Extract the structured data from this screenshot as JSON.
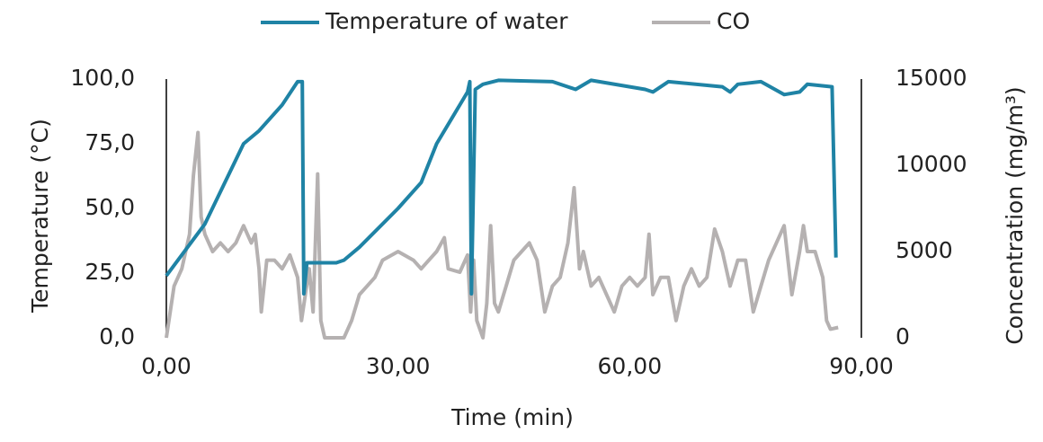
{
  "chart_data": {
    "type": "line",
    "xlabel": "Time (min)",
    "ylabel": "Temperature (°C)",
    "y2label": "Concentration (mg/m³)",
    "xlim": [
      0,
      90
    ],
    "xticks": [
      {
        "value": 0,
        "label": "0,00"
      },
      {
        "value": 30,
        "label": "30,00"
      },
      {
        "value": 60,
        "label": "60,00"
      },
      {
        "value": 90,
        "label": "90,00"
      }
    ],
    "ylim": [
      0,
      100
    ],
    "yticks": [
      {
        "value": 0,
        "label": "0,0"
      },
      {
        "value": 25,
        "label": "25,0"
      },
      {
        "value": 50,
        "label": "50,0"
      },
      {
        "value": 75,
        "label": "75,0"
      },
      {
        "value": 100,
        "label": "100,0"
      }
    ],
    "y2lim": [
      0,
      15000
    ],
    "y2ticks": [
      0,
      5000,
      10000,
      15000
    ],
    "legend": "top",
    "series": [
      {
        "name": "Temperature of water",
        "color": "#1f83a5",
        "axis": "y",
        "x": [
          0,
          5,
          10,
          12,
          15,
          17,
          17.6,
          17.8,
          18.2,
          22,
          23,
          25,
          30,
          33,
          35,
          37,
          39,
          39.3,
          39.5,
          40,
          41,
          43,
          50,
          53,
          55,
          62,
          63,
          65,
          72,
          73,
          74,
          77,
          80,
          82,
          83,
          86.2,
          86.7
        ],
        "values": [
          24,
          44,
          75,
          80,
          90,
          99,
          99,
          17,
          29,
          29,
          30,
          35,
          50,
          60,
          75,
          85,
          95,
          99,
          17,
          96,
          98,
          99.5,
          99,
          96,
          99.5,
          96,
          95,
          99,
          97,
          95,
          98,
          99,
          94,
          95,
          98,
          97,
          31
        ]
      },
      {
        "name": "CO",
        "color": "#b5b1b1",
        "axis": "y2",
        "x": [
          0,
          0.5,
          1,
          2,
          3,
          3.5,
          4.1,
          4.5,
          5,
          6,
          7,
          8,
          9,
          10,
          11,
          11.5,
          12,
          12.3,
          13,
          14,
          15,
          16,
          17,
          17.5,
          18.5,
          19,
          19.6,
          20,
          20.5,
          22,
          23,
          24,
          25,
          26,
          27,
          28,
          30,
          32,
          33,
          34,
          35,
          36,
          36.5,
          38,
          39,
          39.4,
          39.8,
          40.2,
          41,
          41.5,
          42,
          42.5,
          43,
          44,
          45,
          46,
          47,
          48,
          49,
          50,
          51,
          52,
          52.8,
          53.5,
          54,
          55,
          56,
          57,
          58,
          59,
          60,
          61,
          62,
          62.5,
          63,
          64,
          65,
          66,
          67,
          68,
          69,
          70,
          71,
          72,
          73,
          74,
          75,
          76,
          77,
          78,
          79,
          80,
          81,
          82,
          82.5,
          83,
          84,
          85,
          85.5,
          86,
          87
        ],
        "values": [
          0,
          1500,
          3000,
          4000,
          6000,
          9400,
          11900,
          7000,
          6000,
          5000,
          5500,
          5000,
          5500,
          6500,
          5500,
          6000,
          4000,
          1500,
          4500,
          4500,
          4000,
          4800,
          3500,
          1000,
          4000,
          1500,
          9500,
          1000,
          0,
          0,
          0,
          1000,
          2500,
          3000,
          3500,
          4500,
          5000,
          4500,
          4000,
          4500,
          5000,
          5800,
          4000,
          3800,
          4800,
          1500,
          4500,
          1000,
          0,
          2000,
          6500,
          2000,
          1500,
          3000,
          4500,
          5000,
          5500,
          4500,
          1500,
          3000,
          3500,
          5500,
          8700,
          4000,
          5000,
          3000,
          3500,
          2500,
          1500,
          3000,
          3500,
          3000,
          3500,
          6000,
          2500,
          3500,
          3500,
          1000,
          3000,
          4000,
          3000,
          3500,
          6300,
          5000,
          3000,
          4500,
          4500,
          1500,
          3000,
          4500,
          5500,
          6500,
          2500,
          5000,
          6500,
          5000,
          5000,
          3500,
          1000,
          500,
          600
        ]
      }
    ]
  }
}
